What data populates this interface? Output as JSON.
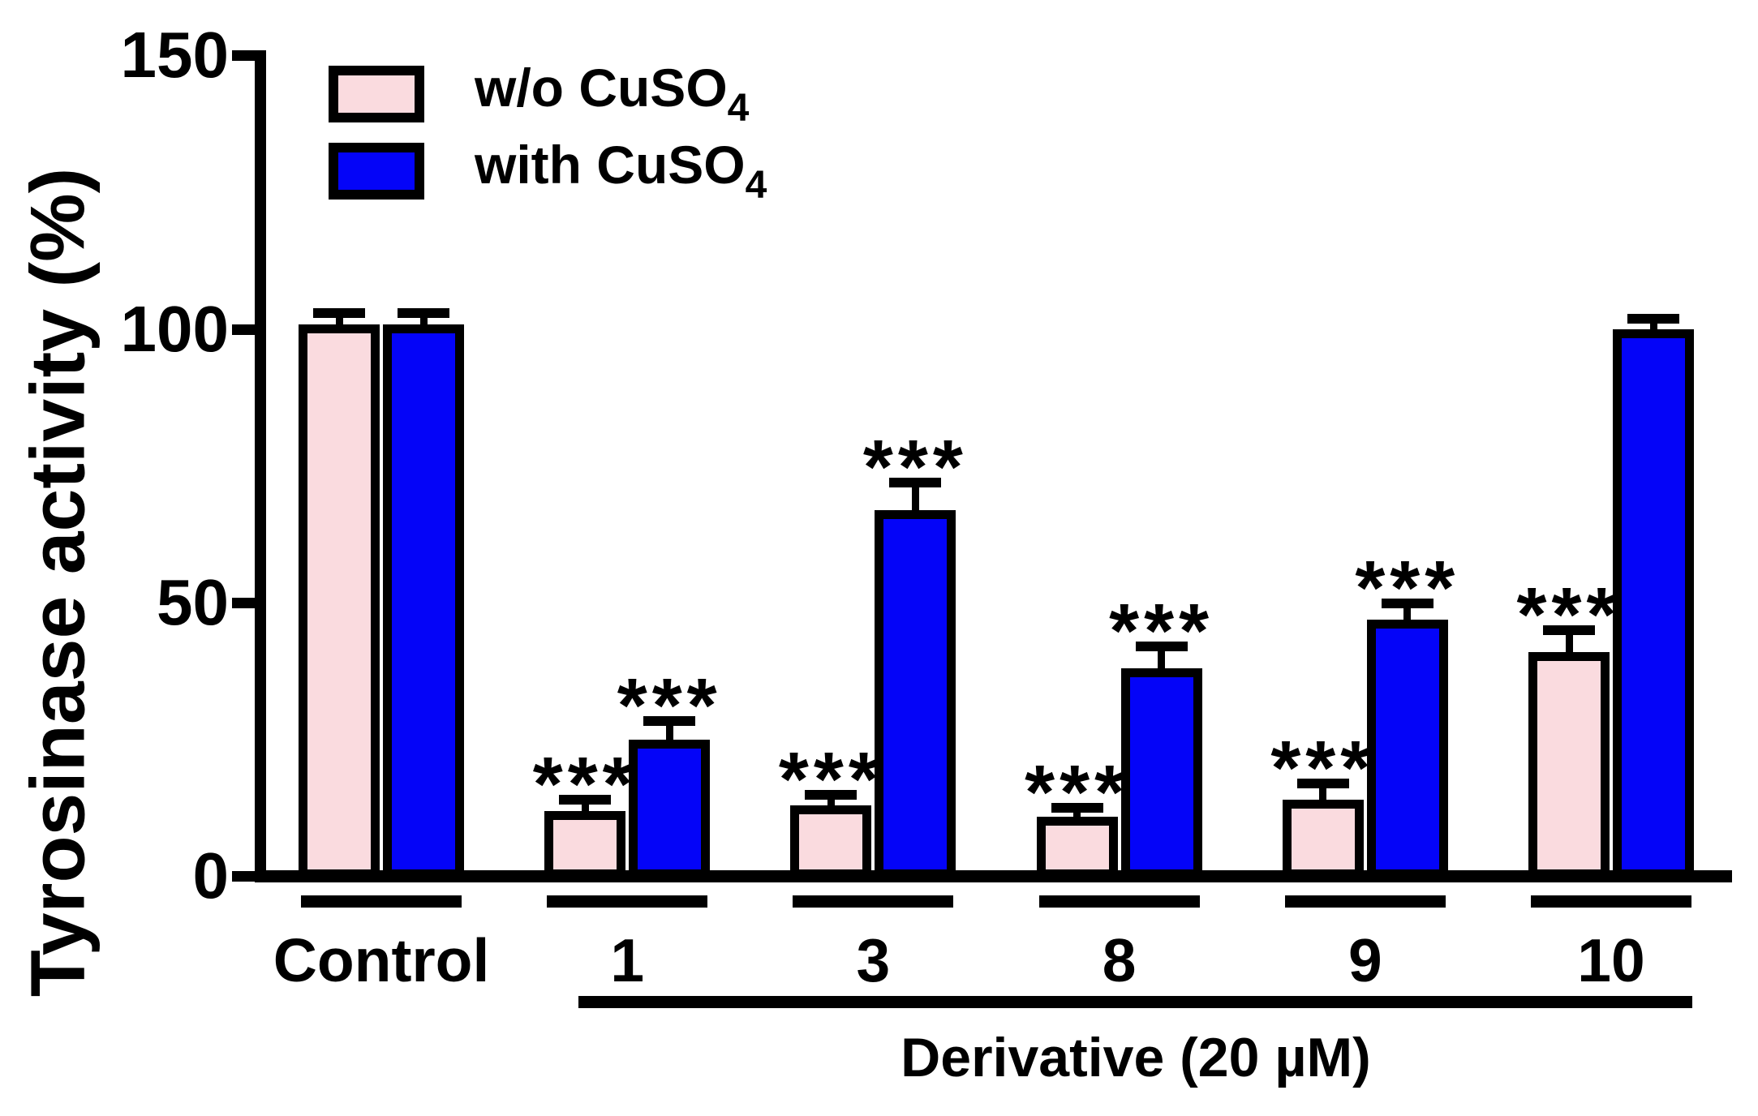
{
  "figure": {
    "background": "#ffffff",
    "text_color": "#000000"
  },
  "legend": {
    "items": [
      {
        "label": "w/o CuSO",
        "subscript": "4",
        "color": "#FADBDF"
      },
      {
        "label": "with CuSO",
        "subscript": "4",
        "color": "#0404F8"
      }
    ]
  },
  "chart_data": {
    "type": "bar",
    "title": "",
    "ylabel": "Tyrosinase activity (%)",
    "xlabel": "Derivative (20 µM)",
    "xlabel_scope": "derivative groups 1–10",
    "categories": [
      "Control",
      "1",
      "3",
      "8",
      "9",
      "10"
    ],
    "ylim": [
      0,
      150
    ],
    "yticks": [
      0,
      50,
      100,
      150
    ],
    "grid": false,
    "legend_position": "top-left",
    "error_bars": "SEM, upper only",
    "series": [
      {
        "name": "w/o CuSO4",
        "color": "#FADBDF",
        "values": [
          100,
          11,
          12,
          10,
          13,
          40
        ],
        "errors": [
          2,
          2,
          2,
          1.5,
          3,
          4
        ],
        "significance": [
          "",
          "***",
          "***",
          "***",
          "***",
          "***"
        ]
      },
      {
        "name": "with CuSO4",
        "color": "#0404F8",
        "values": [
          100,
          24,
          66,
          37,
          46,
          99
        ],
        "errors": [
          2,
          3.5,
          5,
          4,
          3,
          2
        ],
        "significance": [
          "",
          "***",
          "***",
          "***",
          "***",
          ""
        ]
      }
    ]
  }
}
